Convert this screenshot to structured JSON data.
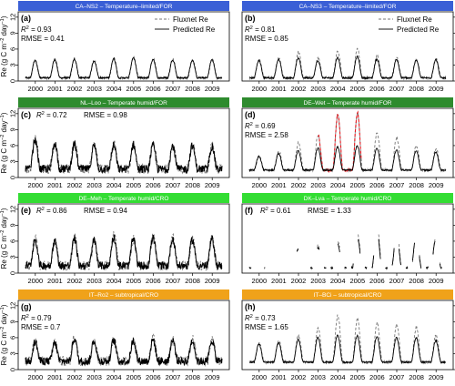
{
  "figure": {
    "ylabel_left": "Re (g C m",
    "ylabel_sup": "−2",
    "ylabel_mid": " day",
    "ylabel_sup2": "−1",
    "ylabel_end": ")",
    "legend": {
      "flux": "Fluxnet Re",
      "pred": "Predicted Re"
    },
    "colors": {
      "blue": "#3a5fd6",
      "darkgreen": "#2e8b2e",
      "lightgreen": "#33dd33",
      "orange": "#f0a21a",
      "red": "#e8141b"
    }
  },
  "chart_data": [
    {
      "type": "line",
      "panel": "(a)",
      "banner": "CA–NS2 – Temperature–limited/FOR",
      "banner_color": "blue",
      "r2": "0.93",
      "rmse_text": "RMSE = 0.41",
      "years": [
        "2000",
        "2001",
        "2002",
        "2003",
        "2004",
        "2005",
        "2006",
        "2007",
        "2008",
        "2009"
      ],
      "yticks": [
        0,
        3,
        6,
        9,
        12
      ],
      "ylim": [
        0,
        13
      ],
      "show_legend": true,
      "series": [
        {
          "name": "Fluxnet Re",
          "values": [
            4.0,
            4.1,
            4.2,
            3.9,
            4.3,
            4.5,
            4.2,
            4.1,
            4.0,
            4.1
          ]
        },
        {
          "name": "Predicted Re",
          "values": [
            3.9,
            4.0,
            4.1,
            3.8,
            4.2,
            4.4,
            4.1,
            4.0,
            3.9,
            4.0
          ]
        }
      ],
      "base": 0.6
    },
    {
      "type": "line",
      "panel": "(b)",
      "banner": "CA–NS3 – Temperature–limited/FOR",
      "banner_color": "blue",
      "r2": "0.81",
      "rmse_text": "RMSE = 0.85",
      "years": [
        "2000",
        "2001",
        "2002",
        "2003",
        "2004",
        "2005",
        "2006",
        "2007",
        "2008",
        "2009"
      ],
      "yticks": [
        0,
        3,
        6,
        9,
        12
      ],
      "ylim": [
        0,
        13
      ],
      "show_legend": true,
      "series": [
        {
          "name": "Fluxnet Re",
          "values": [
            4.0,
            4.2,
            5.4,
            4.3,
            5.6,
            6.0,
            4.8,
            4.4,
            4.0,
            4.2
          ]
        },
        {
          "name": "Predicted Re",
          "values": [
            3.9,
            4.1,
            4.3,
            3.8,
            4.4,
            4.6,
            4.1,
            4.0,
            3.9,
            4.0
          ]
        }
      ],
      "base": 0.6
    },
    {
      "type": "line",
      "panel": "(c)",
      "banner": "NL–Loo – Temperate humid/FOR",
      "banner_color": "darkgreen",
      "r2": "0.72",
      "rmse_text": "RMSE = 0.98",
      "years": [
        "2000",
        "2001",
        "2002",
        "2003",
        "2004",
        "2005",
        "2006",
        "2007",
        "2008",
        "2009"
      ],
      "yticks": [
        0,
        3,
        6,
        9,
        12
      ],
      "ylim": [
        0,
        13
      ],
      "show_legend": false,
      "series": [
        {
          "name": "Fluxnet Re",
          "values": [
            7.5,
            6.0,
            6.5,
            5.8,
            6.3,
            6.0,
            6.4,
            6.2,
            5.9,
            6.1
          ]
        },
        {
          "name": "Predicted Re",
          "values": [
            7.0,
            6.5,
            6.2,
            6.0,
            6.0,
            6.2,
            6.0,
            5.9,
            6.0,
            5.8
          ]
        }
      ],
      "base": 1.6
    },
    {
      "type": "line",
      "panel": "(d)",
      "banner": "DE–Wet – Temperate humid/FOR",
      "banner_color": "darkgreen",
      "r2": "0.69",
      "rmse_text": "RMSE = 2.58",
      "years": [
        "2000",
        "2001",
        "2002",
        "2003",
        "2004",
        "2005",
        "2006",
        "2007",
        "2008",
        "2009"
      ],
      "yticks": [
        0,
        3,
        6,
        9,
        12
      ],
      "ylim": [
        0,
        13
      ],
      "show_legend": false,
      "series": [
        {
          "name": "Fluxnet Re",
          "values": [
            4.0,
            5.0,
            6.5,
            8.0,
            11.8,
            12.2,
            8.5,
            7.5,
            6.0,
            5.5
          ]
        },
        {
          "name": "Predicted Re",
          "values": [
            4.0,
            4.5,
            5.0,
            5.5,
            5.8,
            6.0,
            5.5,
            5.2,
            5.0,
            4.8
          ]
        }
      ],
      "base": 1.4
    },
    {
      "type": "line",
      "panel": "(e)",
      "banner": "DE–Meh – Temperate humid/CRO",
      "banner_color": "lightgreen",
      "r2": "0.86",
      "rmse_text": "RMSE = 0.94",
      "years": [
        "2000",
        "2001",
        "2002",
        "2003",
        "2004",
        "2005",
        "2006",
        "2007",
        "2008",
        "2009"
      ],
      "yticks": [
        0,
        3,
        6,
        9,
        12
      ],
      "ylim": [
        0,
        13
      ],
      "show_legend": false,
      "series": [
        {
          "name": "Fluxnet Re",
          "values": [
            6.5,
            6.2,
            6.8,
            6.0,
            7.2,
            6.5,
            7.0,
            6.8,
            6.5,
            6.6
          ]
        },
        {
          "name": "Predicted Re",
          "values": [
            6.3,
            6.0,
            6.5,
            6.2,
            6.8,
            6.4,
            6.7,
            6.5,
            6.3,
            6.4
          ]
        }
      ],
      "base": 1.4
    },
    {
      "type": "line",
      "panel": "(f)",
      "banner": "DK–Lva – Temperate humid/CRO",
      "banner_color": "lightgreen",
      "r2": "0.61",
      "rmse_text": "RMSE = 1.33",
      "years": [
        "2000",
        "2001",
        "2002",
        "2003",
        "2004",
        "2005",
        "2006",
        "2007",
        "2008",
        "2009"
      ],
      "yticks": [
        0,
        3,
        6,
        9,
        12
      ],
      "ylim": [
        0,
        13
      ],
      "show_legend": false,
      "series": [
        {
          "name": "Fluxnet Re",
          "values": [
            4.5,
            4.0,
            4.8,
            5.2,
            6.0,
            7.5,
            8.5,
            7.8,
            7.5,
            7.0
          ]
        },
        {
          "name": "Predicted Re",
          "values": [
            4.2,
            3.8,
            4.5,
            4.8,
            5.5,
            6.8,
            7.8,
            7.2,
            7.0,
            6.5
          ]
        }
      ],
      "base": 1.0
    },
    {
      "type": "line",
      "panel": "(g)",
      "banner": "IT–Ro2 – subtropical/CRO",
      "banner_color": "orange",
      "r2": "0.79",
      "rmse_text": "RMSE = 0.7",
      "years": [
        "2000",
        "2001",
        "2002",
        "2003",
        "2004",
        "2005",
        "2006",
        "2007",
        "2008",
        "2009"
      ],
      "yticks": [
        0,
        3,
        6,
        9,
        12
      ],
      "ylim": [
        0,
        13
      ],
      "show_legend": false,
      "series": [
        {
          "name": "Fluxnet Re",
          "values": [
            5.5,
            5.0,
            6.2,
            5.4,
            5.8,
            5.5,
            6.0,
            5.6,
            5.8,
            5.7
          ]
        },
        {
          "name": "Predicted Re",
          "values": [
            5.2,
            5.0,
            5.8,
            5.4,
            5.5,
            5.4,
            5.6,
            5.5,
            5.5,
            5.5
          ]
        }
      ],
      "base": 1.6
    },
    {
      "type": "line",
      "panel": "(h)",
      "banner": "IT–BCi – subtropical/CRO",
      "banner_color": "orange",
      "r2": "0.73",
      "rmse_text": "RMSE = 1.65",
      "years": [
        "2000",
        "2001",
        "2002",
        "2003",
        "2004",
        "2005",
        "2006",
        "2007",
        "2008",
        "2009"
      ],
      "yticks": [
        0,
        3,
        6,
        9,
        12
      ],
      "ylim": [
        0,
        13
      ],
      "show_legend": false,
      "series": [
        {
          "name": "Fluxnet Re",
          "values": [
            5.0,
            5.5,
            6.5,
            7.8,
            10.2,
            9.5,
            8.8,
            8.5,
            8.0,
            6.5
          ]
        },
        {
          "name": "Predicted Re",
          "values": [
            4.8,
            5.0,
            5.6,
            6.0,
            6.5,
            6.4,
            6.2,
            6.0,
            6.0,
            5.5
          ]
        }
      ],
      "base": 1.4
    }
  ]
}
